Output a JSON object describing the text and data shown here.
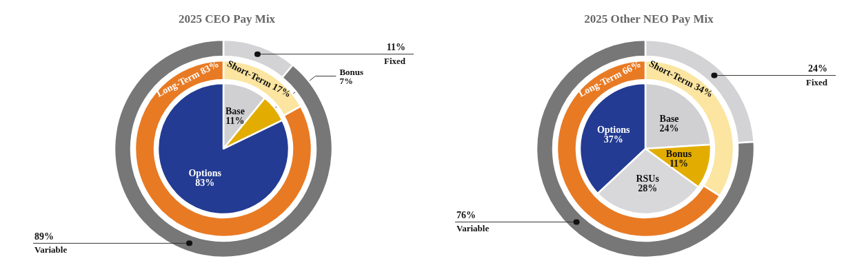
{
  "chart_data": [
    {
      "type": "pie",
      "title": "2025 CEO Pay Mix",
      "categories": [
        "Base",
        "Bonus",
        "Options"
      ],
      "values": [
        11,
        7,
        83
      ],
      "value_labels": [
        "11%",
        "7%",
        "83%"
      ],
      "colors": [
        "#d0d0d3",
        "#e2ad00",
        "#233b92"
      ]
    },
    {
      "type": "donut",
      "categories": [
        "Short-Term",
        "Long-Term"
      ],
      "values": [
        17,
        83
      ],
      "value_labels": [
        "17%",
        "83%"
      ],
      "colors": [
        "#fbe5a0",
        "#e87a24"
      ]
    },
    {
      "type": "donut",
      "categories": [
        "Fixed",
        "Variable"
      ],
      "values": [
        11,
        89
      ],
      "value_labels": [
        "11%",
        "89%"
      ],
      "colors": [
        "#d3d3d6",
        "#777777"
      ]
    },
    {
      "type": "pie",
      "title": "2025 Other NEO Pay Mix",
      "categories": [
        "Base",
        "Bonus",
        "RSUs",
        "Options"
      ],
      "values": [
        24,
        11,
        28,
        37
      ],
      "value_labels": [
        "24%",
        "11%",
        "28%",
        "37%"
      ],
      "colors": [
        "#d0d0d3",
        "#e2ad00",
        "#d8d8da",
        "#233b92"
      ]
    },
    {
      "type": "donut",
      "categories": [
        "Short-Term",
        "Long-Term"
      ],
      "values": [
        34,
        66
      ],
      "value_labels": [
        "34%",
        "66%"
      ],
      "colors": [
        "#fbe5a0",
        "#e87a24"
      ]
    },
    {
      "type": "donut",
      "categories": [
        "Fixed",
        "Variable"
      ],
      "values": [
        24,
        76
      ],
      "value_labels": [
        "24%",
        "76%"
      ],
      "colors": [
        "#d3d3d6",
        "#777777"
      ]
    }
  ]
}
